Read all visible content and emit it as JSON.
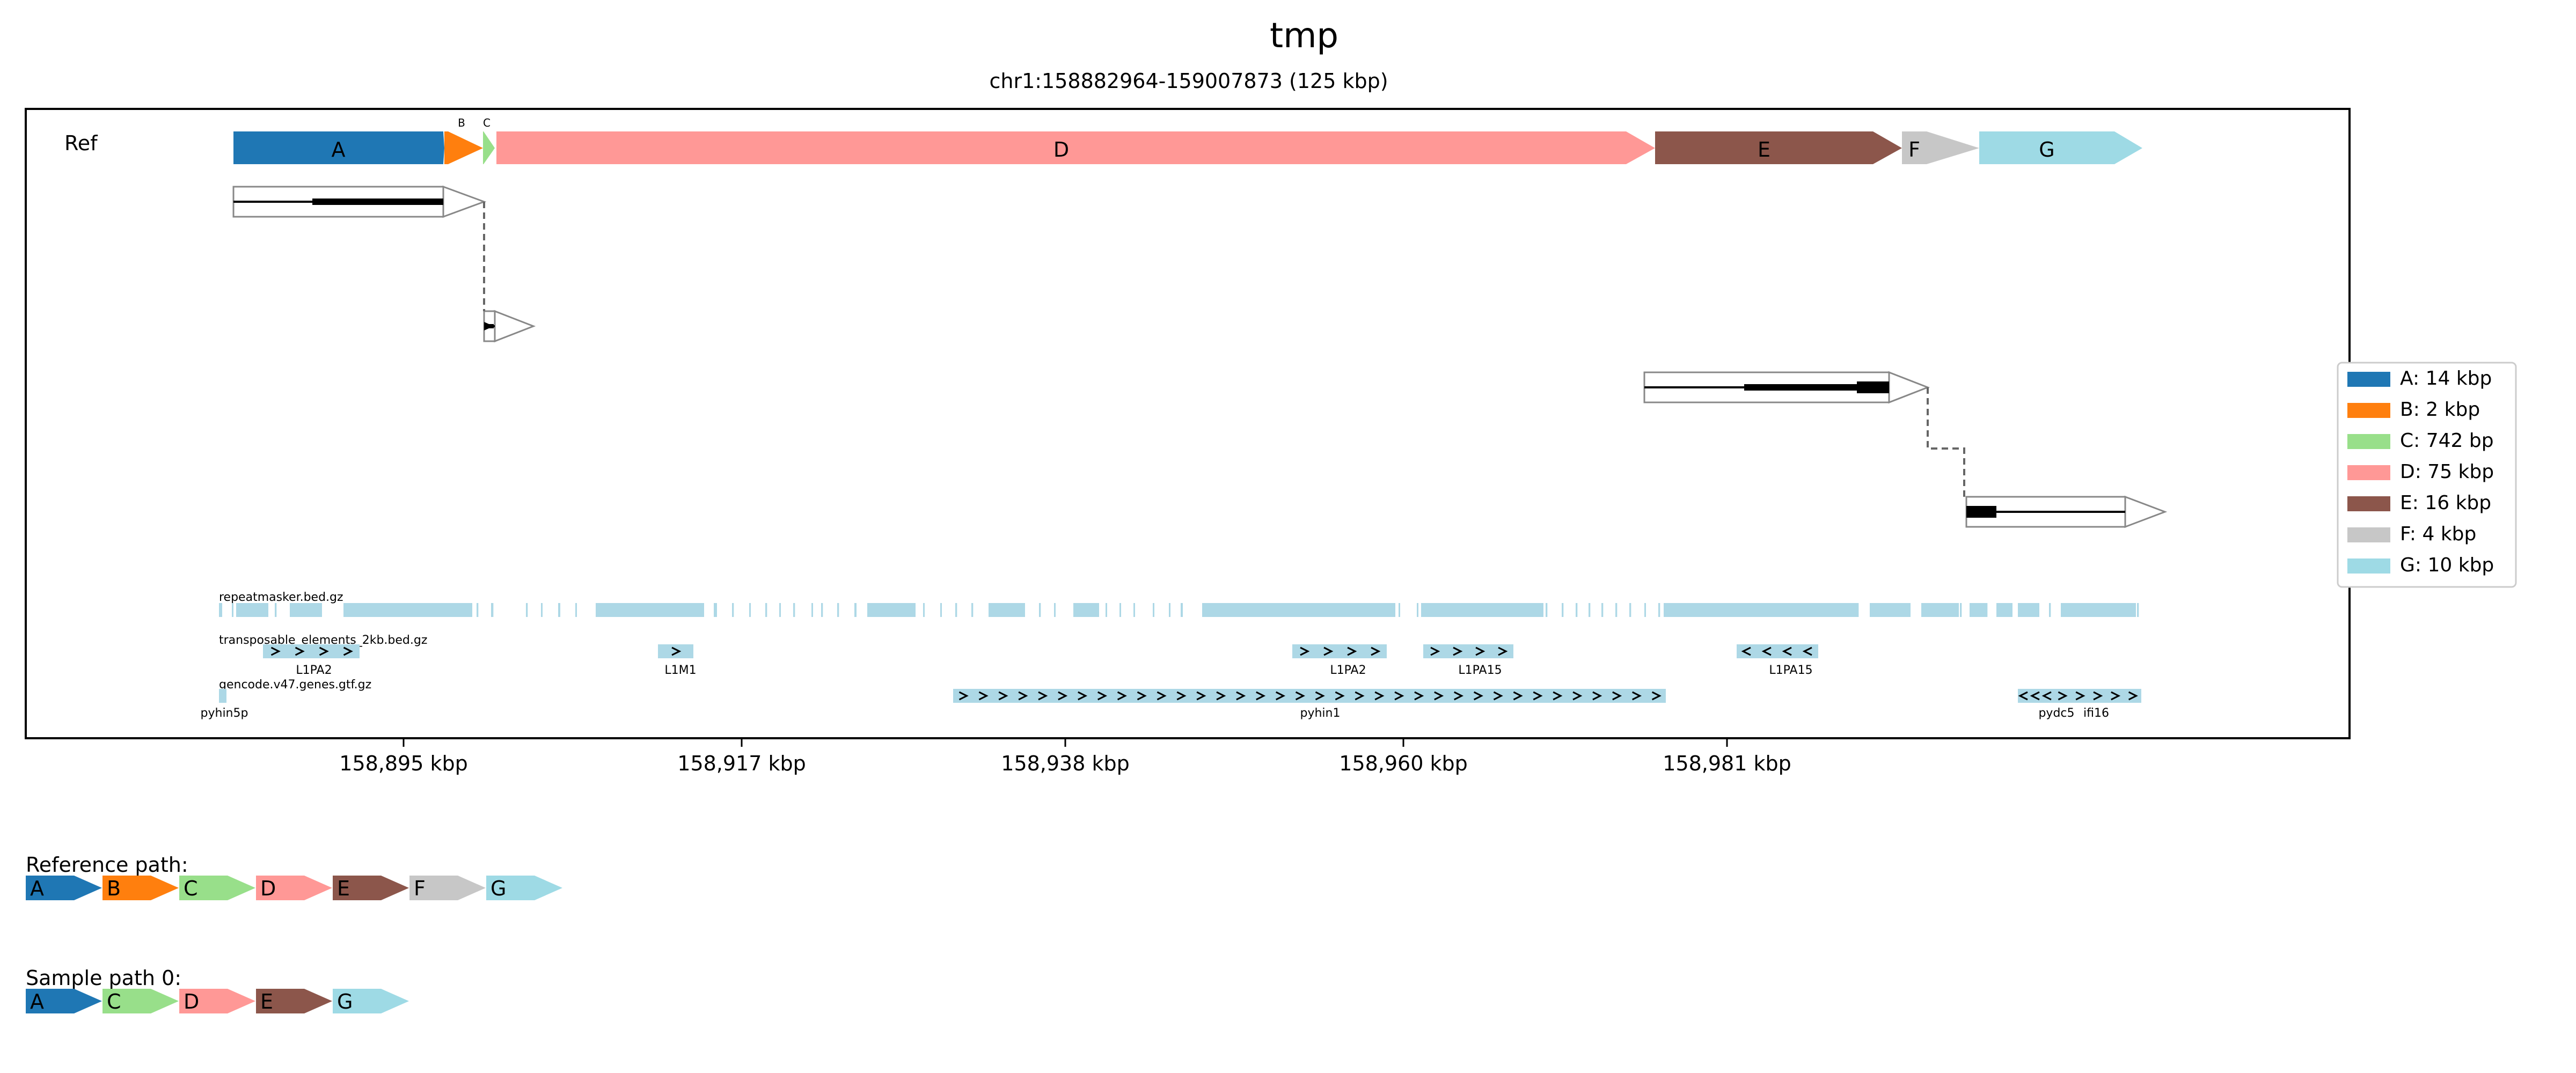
{
  "title": "tmp",
  "subtitle": "chr1:158882964-159007873 (125 kbp)",
  "track_label": "Ref",
  "segments": [
    {
      "id": "A",
      "label": "A",
      "color": "#1f77b4",
      "legend": "A: 14 kbp"
    },
    {
      "id": "B",
      "label": "B",
      "color": "#ff7f0e",
      "legend": "B: 2 kbp"
    },
    {
      "id": "C",
      "label": "C",
      "color": "#98df8a",
      "legend": "C: 742 bp"
    },
    {
      "id": "D",
      "label": "D",
      "color": "#ff9896",
      "legend": "D: 75 kbp"
    },
    {
      "id": "E",
      "label": "E",
      "color": "#8c564b",
      "legend": "E: 16 kbp"
    },
    {
      "id": "F",
      "label": "F",
      "color": "#c7c7c7",
      "legend": "F: 4 kbp"
    },
    {
      "id": "G",
      "label": "G",
      "color": "#9edae5",
      "legend": "G: 10 kbp"
    }
  ],
  "x_ticks": [
    "158,895 kbp",
    "158,917 kbp",
    "158,938 kbp",
    "158,960 kbp",
    "158,981 kbp"
  ],
  "annotation_tracks": [
    {
      "name": "repeatmasker.bed.gz",
      "labels": []
    },
    {
      "name": "transposable_elements_2kb.bed.gz",
      "labels": [
        "L1PA2",
        "L1M1",
        "L1PA2",
        "L1PA15",
        "L1PA15"
      ]
    },
    {
      "name": "gencode.v47.genes.gtf.gz",
      "labels": [
        "pyhin5p",
        "pyhin1",
        "pydc5",
        "ifi16"
      ]
    }
  ],
  "reference_path": {
    "label": "Reference path:",
    "segments": [
      "A",
      "B",
      "C",
      "D",
      "E",
      "F",
      "G"
    ]
  },
  "sample_path": {
    "label": "Sample path 0:",
    "segments": [
      "A",
      "C",
      "D",
      "E",
      "G"
    ]
  },
  "annotation_color": "#add8e6"
}
